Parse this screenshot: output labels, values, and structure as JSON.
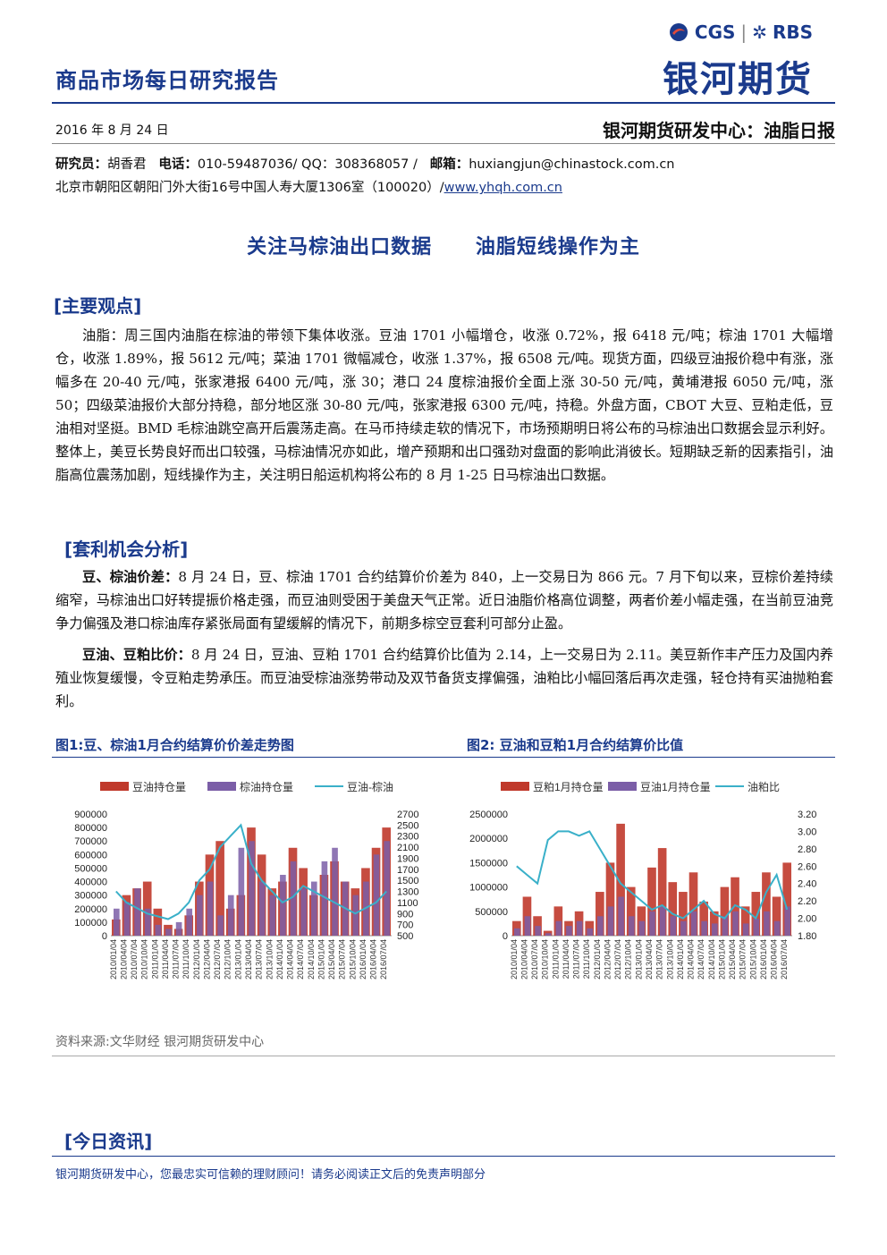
{
  "header": {
    "report_title": "商品市场每日研究报告",
    "logo_cgs": "CGS",
    "logo_rbs": "RBS",
    "logo_company": "银河期货",
    "date": "2016 年 8 月 24 日",
    "center": "银河期货研发中心：油脂日报",
    "researcher_label": "研究员：",
    "researcher": "胡香君",
    "phone_label": "电话：",
    "phone": "010-59487036/ QQ：308368057 /",
    "email_label": "邮箱：",
    "email": "huxiangjun@chinastock.com.cn",
    "address": "北京市朝阳区朝阳门外大街16号中国人寿大厦1306室（100020）/",
    "website": "www.yhqh.com.cn"
  },
  "title": {
    "part1": "关注马棕油出口数据",
    "part2": "油脂短线操作为主"
  },
  "sections": {
    "main_view": "[主要观点]",
    "main_text": "油脂：周三国内油脂在棕油的带领下集体收涨。豆油 1701 小幅增仓，收涨 0.72%，报 6418 元/吨；棕油 1701 大幅增仓，收涨 1.89%，报 5612 元/吨；菜油 1701 微幅减仓，收涨 1.37%，报 6508 元/吨。现货方面，四级豆油报价稳中有涨，涨幅多在 20-40 元/吨，张家港报 6400 元/吨，涨 30；港口 24 度棕油报价全面上涨 30-50 元/吨，黄埔港报 6050 元/吨，涨 50；四级菜油报价大部分持稳，部分地区涨 30-80 元/吨，张家港报 6300 元/吨，持稳。外盘方面，CBOT 大豆、豆粕走低，豆油相对坚挺。BMD 毛棕油跳空高开后震荡走高。在马币持续走软的情况下，市场预期明日将公布的马棕油出口数据会显示利好。整体上，美豆长势良好而出口较强，马棕油情况亦如此，增产预期和出口强劲对盘面的影响此消彼长。短期缺乏新的因素指引，油脂高位震荡加剧，短线操作为主，关注明日船运机构将公布的 8 月 1-25 日马棕油出口数据。",
    "arb": "[套利机会分析]",
    "arb1_label": "豆、棕油价差：",
    "arb1_text": "8 月 24 日，豆、棕油 1701 合约结算价价差为 840，上一交易日为 866 元。7 月下旬以来，豆棕价差持续缩窄，马棕油出口好转提振价格走强，而豆油则受困于美盘天气正常。近日油脂价格高位调整，两者价差小幅走强，在当前豆油竞争力偏强及港口棕油库存紧张局面有望缓解的情况下，前期多棕空豆套利可部分止盈。",
    "arb2_label": "豆油、豆粕比价：",
    "arb2_text": "8 月 24 日，豆油、豆粕 1701 合约结算价比值为 2.14，上一交易日为 2.11。美豆新作丰产压力及国内养殖业恢复缓慢，令豆粕走势承压。而豆油受棕油涨势带动及双节备货支撑偏强，油粕比小幅回落后再次走强，轻仓持有买油抛粕套利。",
    "news": "[今日资讯]"
  },
  "figures": {
    "fig1_title": "图1:豆、棕油1月合约结算价价差走势图",
    "fig2_title": "图2: 豆油和豆粕1月合约结算价比值",
    "source": "资料来源:文华财经    银河期货研发中心"
  },
  "chart_data": [
    {
      "type": "bar",
      "series": [
        {
          "name": "豆油持仓量",
          "color": "#c0392b"
        },
        {
          "name": "棕油持仓量",
          "color": "#7b5ea7"
        },
        {
          "name": "豆油-棕油",
          "color": "#3ab0c9"
        }
      ],
      "y_left_ticks": [
        "900000",
        "800000",
        "700000",
        "600000",
        "500000",
        "400000",
        "300000",
        "200000",
        "100000",
        "0"
      ],
      "y_right_ticks": [
        "2700",
        "2500",
        "2300",
        "2100",
        "1900",
        "1700",
        "1500",
        "1300",
        "1100",
        "900",
        "700",
        "500"
      ],
      "ylim_left": [
        0,
        900000
      ],
      "ylim_right": [
        500,
        2700
      ],
      "x_ticks": [
        "2010/01/04",
        "2010/04/04",
        "2010/07/04",
        "2010/10/04",
        "2011/01/04",
        "2011/04/04",
        "2011/07/04",
        "2011/10/04",
        "2012/01/04",
        "2012/04/04",
        "2012/07/04",
        "2012/10/04",
        "2013/01/04",
        "2013/04/04",
        "2013/07/04",
        "2013/10/04",
        "2014/01/04",
        "2014/04/04",
        "2014/07/04",
        "2014/10/04",
        "2015/01/04",
        "2015/04/04",
        "2015/07/04",
        "2015/10/04",
        "2016/01/04",
        "2016/04/04",
        "2016/07/04"
      ],
      "bar1": [
        120000,
        300000,
        350000,
        400000,
        200000,
        80000,
        50000,
        150000,
        400000,
        600000,
        700000,
        200000,
        300000,
        800000,
        600000,
        350000,
        400000,
        650000,
        500000,
        300000,
        450000,
        550000,
        400000,
        350000,
        500000,
        650000,
        800000
      ],
      "bar2": [
        200000,
        250000,
        350000,
        200000,
        80000,
        50000,
        100000,
        200000,
        300000,
        400000,
        150000,
        300000,
        650000,
        700000,
        400000,
        300000,
        450000,
        550000,
        350000,
        400000,
        550000,
        650000,
        400000,
        300000,
        400000,
        600000,
        700000
      ],
      "line": [
        1300,
        1100,
        1000,
        900,
        850,
        800,
        900,
        1100,
        1500,
        1700,
        2100,
        2300,
        2500,
        1800,
        1500,
        1300,
        1100,
        1200,
        1400,
        1300,
        1200,
        1100,
        1000,
        900,
        1000,
        1100,
        1300
      ]
    },
    {
      "type": "bar",
      "series": [
        {
          "name": "豆粕1月持仓量",
          "color": "#c0392b"
        },
        {
          "name": "豆油1月持仓量",
          "color": "#7b5ea7"
        },
        {
          "name": "油粕比",
          "color": "#3ab0c9"
        }
      ],
      "y_left_ticks": [
        "2500000",
        "2000000",
        "1500000",
        "1000000",
        "500000",
        "0"
      ],
      "y_right_ticks": [
        "3.20",
        "3.00",
        "2.80",
        "2.60",
        "2.40",
        "2.20",
        "2.00",
        "1.80"
      ],
      "ylim_left": [
        0,
        2500000
      ],
      "ylim_right": [
        1.8,
        3.2
      ],
      "x_ticks": [
        "2010/01/04",
        "2010/04/04",
        "2010/07/04",
        "2010/10/04",
        "2011/01/04",
        "2011/04/04",
        "2011/07/04",
        "2011/10/04",
        "2012/01/04",
        "2012/04/04",
        "2012/07/04",
        "2012/10/04",
        "2013/01/04",
        "2013/04/04",
        "2013/07/04",
        "2013/10/04",
        "2014/01/04",
        "2014/04/04",
        "2014/07/04",
        "2014/10/04",
        "2015/01/04",
        "2015/04/04",
        "2015/07/04",
        "2015/10/04",
        "2016/01/04",
        "2016/04/04",
        "2016/07/04"
      ],
      "bar1": [
        300000,
        800000,
        400000,
        100000,
        600000,
        300000,
        500000,
        300000,
        900000,
        1500000,
        2300000,
        1000000,
        600000,
        1400000,
        1800000,
        1100000,
        900000,
        1300000,
        700000,
        500000,
        1000000,
        1200000,
        600000,
        900000,
        1300000,
        800000,
        1500000
      ],
      "bar2": [
        150000,
        400000,
        200000,
        50000,
        300000,
        200000,
        300000,
        150000,
        400000,
        600000,
        800000,
        400000,
        300000,
        500000,
        600000,
        400000,
        300000,
        500000,
        300000,
        250000,
        400000,
        500000,
        250000,
        350000,
        500000,
        300000,
        600000
      ],
      "line": [
        2.6,
        2.5,
        2.4,
        2.9,
        3.0,
        3.0,
        2.95,
        3.0,
        2.8,
        2.6,
        2.4,
        2.3,
        2.2,
        2.1,
        2.15,
        2.05,
        2.0,
        2.1,
        2.2,
        2.05,
        2.0,
        2.15,
        2.1,
        2.0,
        2.3,
        2.5,
        2.1
      ]
    }
  ],
  "footer": {
    "text": "银河期货研发中心，您最忠实可信赖的理财顾问！请务必阅读正文后的免责声明部分"
  }
}
